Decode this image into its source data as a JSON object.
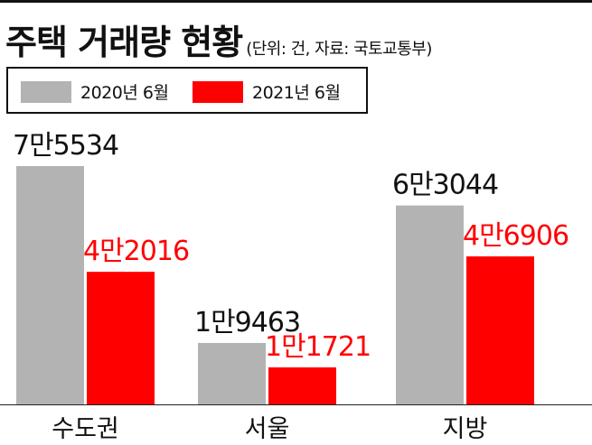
{
  "header": {
    "title": "주택 거래량 현황",
    "subtitle": "(단위: 건, 자료: 국토교통부)"
  },
  "chart_data": {
    "type": "bar",
    "categories": [
      "수도권",
      "서울",
      "지방"
    ],
    "series": [
      {
        "name": "2020년 6월",
        "color": "#b3b3b3",
        "values": [
          75534,
          19463,
          63044
        ],
        "labels": [
          "7만5534",
          "1만9463",
          "6만3044"
        ],
        "label_color": "#111111"
      },
      {
        "name": "2021년 6월",
        "color": "#ff0000",
        "values": [
          42016,
          11721,
          46906
        ],
        "labels": [
          "4만2016",
          "1만1721",
          "4만6906"
        ],
        "label_color": "#ff0000"
      }
    ],
    "legend_position": "top-left",
    "grid": false,
    "ylim": [
      0,
      80000
    ]
  }
}
